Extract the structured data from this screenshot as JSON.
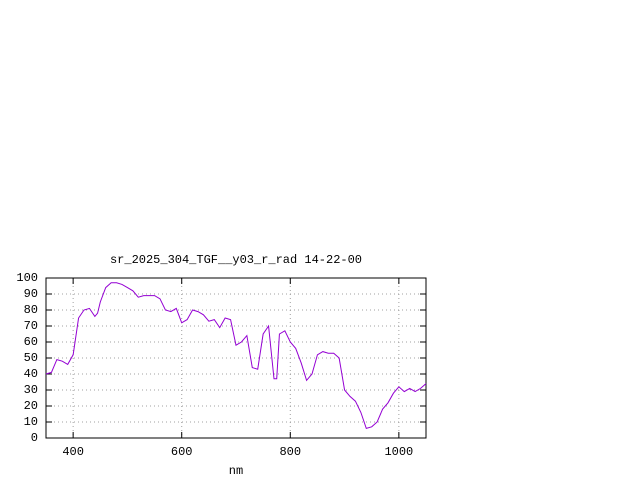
{
  "chart_data": {
    "type": "line",
    "title": "sr_2025_304_TGF__y03_r_rad 14-22-00",
    "x_label": "nm",
    "x": [
      350,
      360,
      370,
      380,
      390,
      400,
      410,
      420,
      430,
      440,
      445,
      450,
      460,
      470,
      480,
      490,
      500,
      510,
      520,
      530,
      540,
      550,
      560,
      570,
      580,
      590,
      600,
      610,
      620,
      630,
      640,
      650,
      660,
      670,
      680,
      690,
      700,
      710,
      720,
      730,
      740,
      750,
      760,
      770,
      775,
      780,
      790,
      800,
      810,
      820,
      830,
      840,
      850,
      860,
      870,
      880,
      890,
      900,
      910,
      920,
      930,
      940,
      950,
      960,
      970,
      980,
      990,
      1000,
      1010,
      1020,
      1030,
      1040,
      1050
    ],
    "series": [
      {
        "name": "sr_2025_304_TGF__y03_r_rad 14-22-00",
        "color": "#9400d3",
        "values": [
          40,
          41,
          49,
          48,
          46,
          52,
          75,
          80,
          81,
          76,
          78,
          85,
          94,
          97,
          97,
          96,
          94,
          92,
          88,
          89,
          89,
          89,
          87,
          80,
          79,
          81,
          72,
          74,
          80,
          79,
          77,
          73,
          74,
          69,
          75,
          74,
          58,
          60,
          64,
          44,
          43,
          65,
          70,
          37,
          37,
          65,
          67,
          60,
          56,
          47,
          36,
          40,
          52,
          54,
          53,
          53,
          50,
          30,
          26,
          23,
          16,
          6,
          7,
          10,
          18,
          22,
          28,
          32,
          29,
          31,
          29,
          31,
          34
        ]
      }
    ],
    "xlim": [
      350,
      1050
    ],
    "ylim": [
      0,
      100
    ],
    "xticks": [
      400,
      600,
      800,
      1000
    ],
    "yticks": [
      0,
      10,
      20,
      30,
      40,
      50,
      60,
      70,
      80,
      90,
      100
    ],
    "grid": true
  }
}
